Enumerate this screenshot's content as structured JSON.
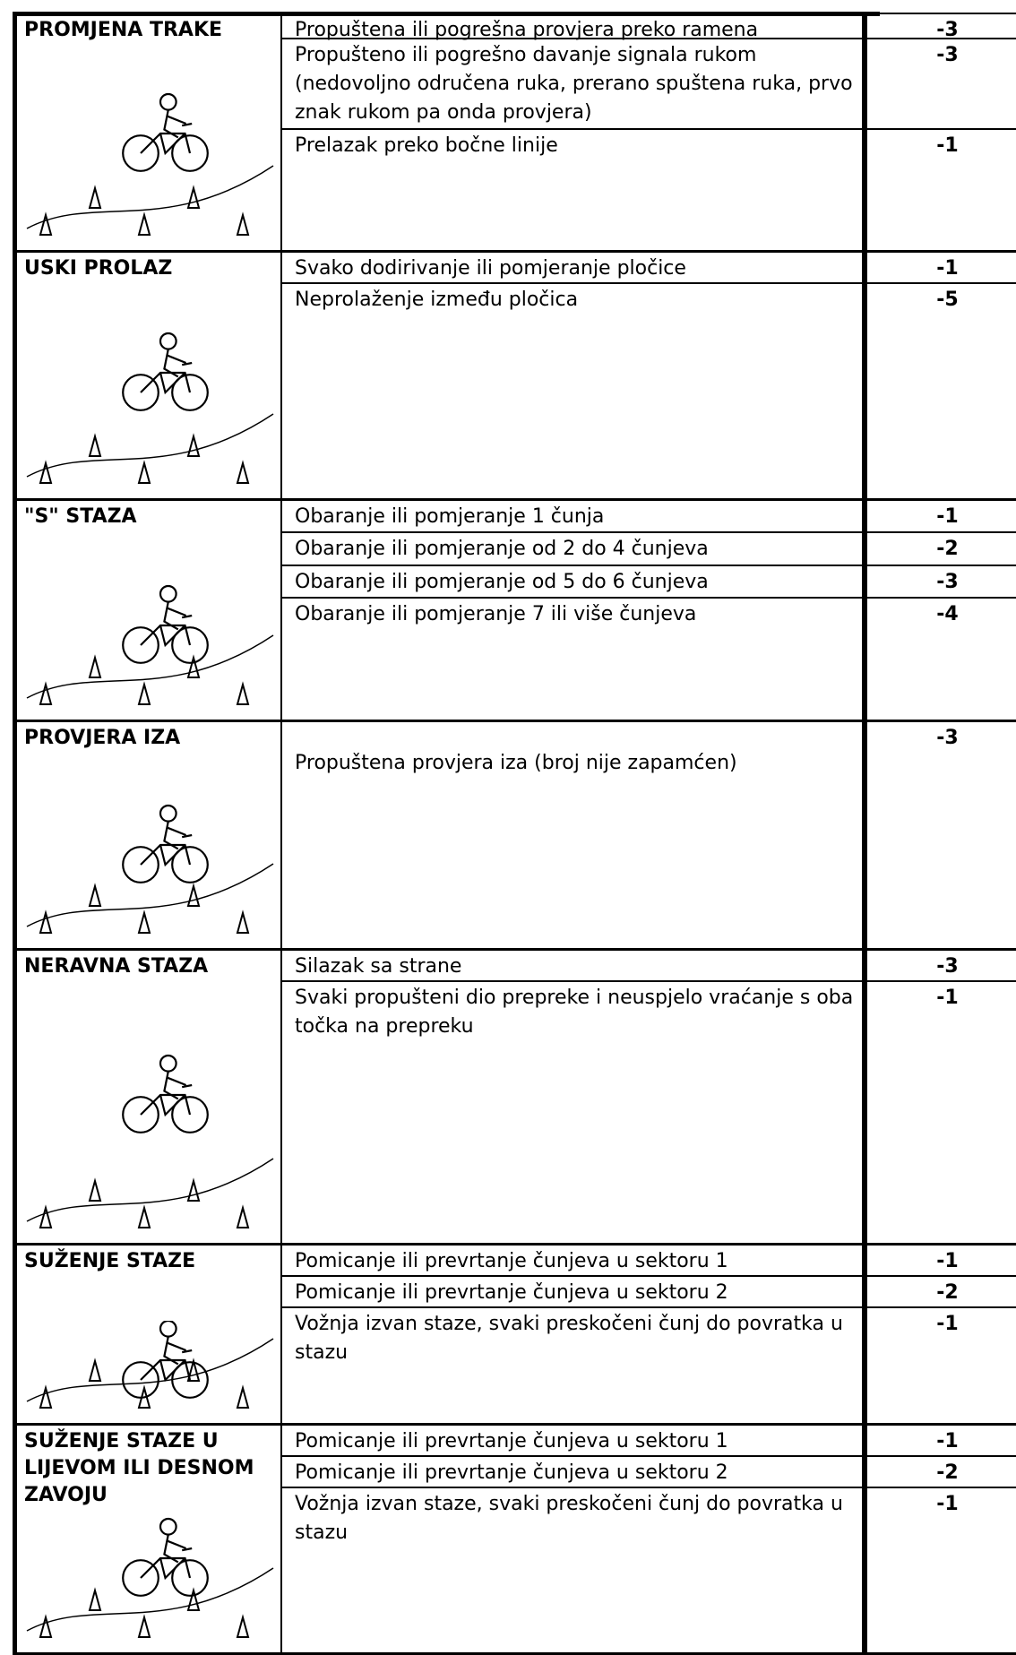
{
  "sections": [
    {
      "title": "PROMJENA TRAKE",
      "items": [
        {
          "text": "Propuštena ili pogrešna provjera preko ramena",
          "points": -3
        },
        {
          "text": "Propušteno ili pogrešno davanje signala rukom (nedovoljno odručena ruka, prerano spuštena ruka, prvo znak rukom pa onda provjera)",
          "points": -3
        },
        {
          "text": "Prelazak preko bočne linije",
          "points": -1
        }
      ]
    },
    {
      "title": "USKI PROLAZ",
      "items": [
        {
          "text": "Svako dodirivanje ili pomjeranje pločice",
          "points": -1
        },
        {
          "text": "Neprolaženje između pločica",
          "points": -5
        }
      ]
    },
    {
      "title": "\"S\" STAZA",
      "items": [
        {
          "text": "Obaranje ili pomjeranje 1 čunja",
          "points": -1
        },
        {
          "text": "Obaranje ili pomjeranje od 2 do 4 čunjeva",
          "points": -2
        },
        {
          "text": "Obaranje ili pomjeranje od 5 do 6 čunjeva",
          "points": -3
        },
        {
          "text": "Obaranje ili pomjeranje 7 ili više čunjeva",
          "points": -4
        }
      ]
    },
    {
      "title": "PROVJERA IZA",
      "items": [
        {
          "text": "Propuštena provjera iza (broj nije zapamćen)",
          "points": -3
        }
      ]
    },
    {
      "title": "NERAVNA STAZA",
      "items": [
        {
          "text": "Silazak sa strane",
          "points": -3
        },
        {
          "text": "Svaki propušteni dio prepreke i neuspjelo vraćanje s oba točka na prepreku",
          "points": -1
        }
      ]
    },
    {
      "title": "SUŽENJE STAZE",
      "items": [
        {
          "text": "Pomicanje ili prevrtanje čunjeva u sektoru 1",
          "points": -1
        },
        {
          "text": "Pomicanje ili prevrtanje čunjeva u sektoru 2",
          "points": -2
        },
        {
          "text": "Vožnja izvan staze, svaki preskočeni čunj do povratka u stazu",
          "points": -1
        }
      ]
    },
    {
      "title": "SUŽENJE STAZE U LIJEVOM ILI DESNOM ZAVOJU",
      "items": [
        {
          "text": "Pomicanje ili prevrtanje čunjeva u sektoru 1",
          "points": -1
        },
        {
          "text": "Pomicanje ili prevrtanje čunjeva u sektoru 2",
          "points": -2
        },
        {
          "text": "Vožnja izvan staze, svaki preskočeni čunj do povratka u stazu",
          "points": -1
        }
      ]
    }
  ]
}
